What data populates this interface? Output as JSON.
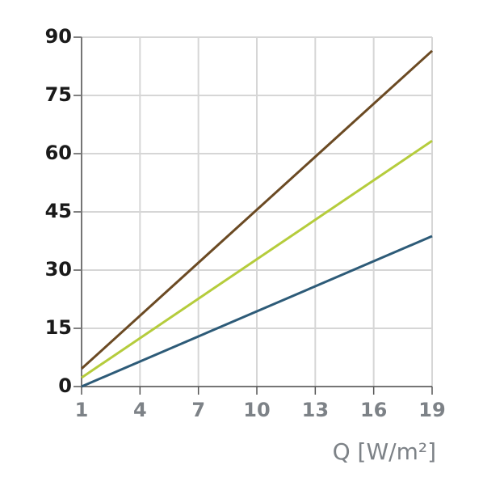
{
  "chart_data": {
    "type": "line",
    "x_label": "Q [W/m²]",
    "x": [
      1,
      19
    ],
    "series": [
      {
        "color": "#6b4a23",
        "values": [
          4.6,
          86.5
        ]
      },
      {
        "color": "#b5cc3c",
        "values": [
          2.3,
          63.3
        ]
      },
      {
        "color": "#2d5b78",
        "values": [
          0,
          38.75
        ]
      }
    ],
    "xlim": [
      1,
      19
    ],
    "xticks": [
      1,
      4,
      7,
      10,
      13,
      16,
      19
    ],
    "ylim": [
      0,
      90
    ],
    "yticks": [
      0,
      15,
      30,
      45,
      60,
      75,
      90
    ],
    "grid": true
  }
}
